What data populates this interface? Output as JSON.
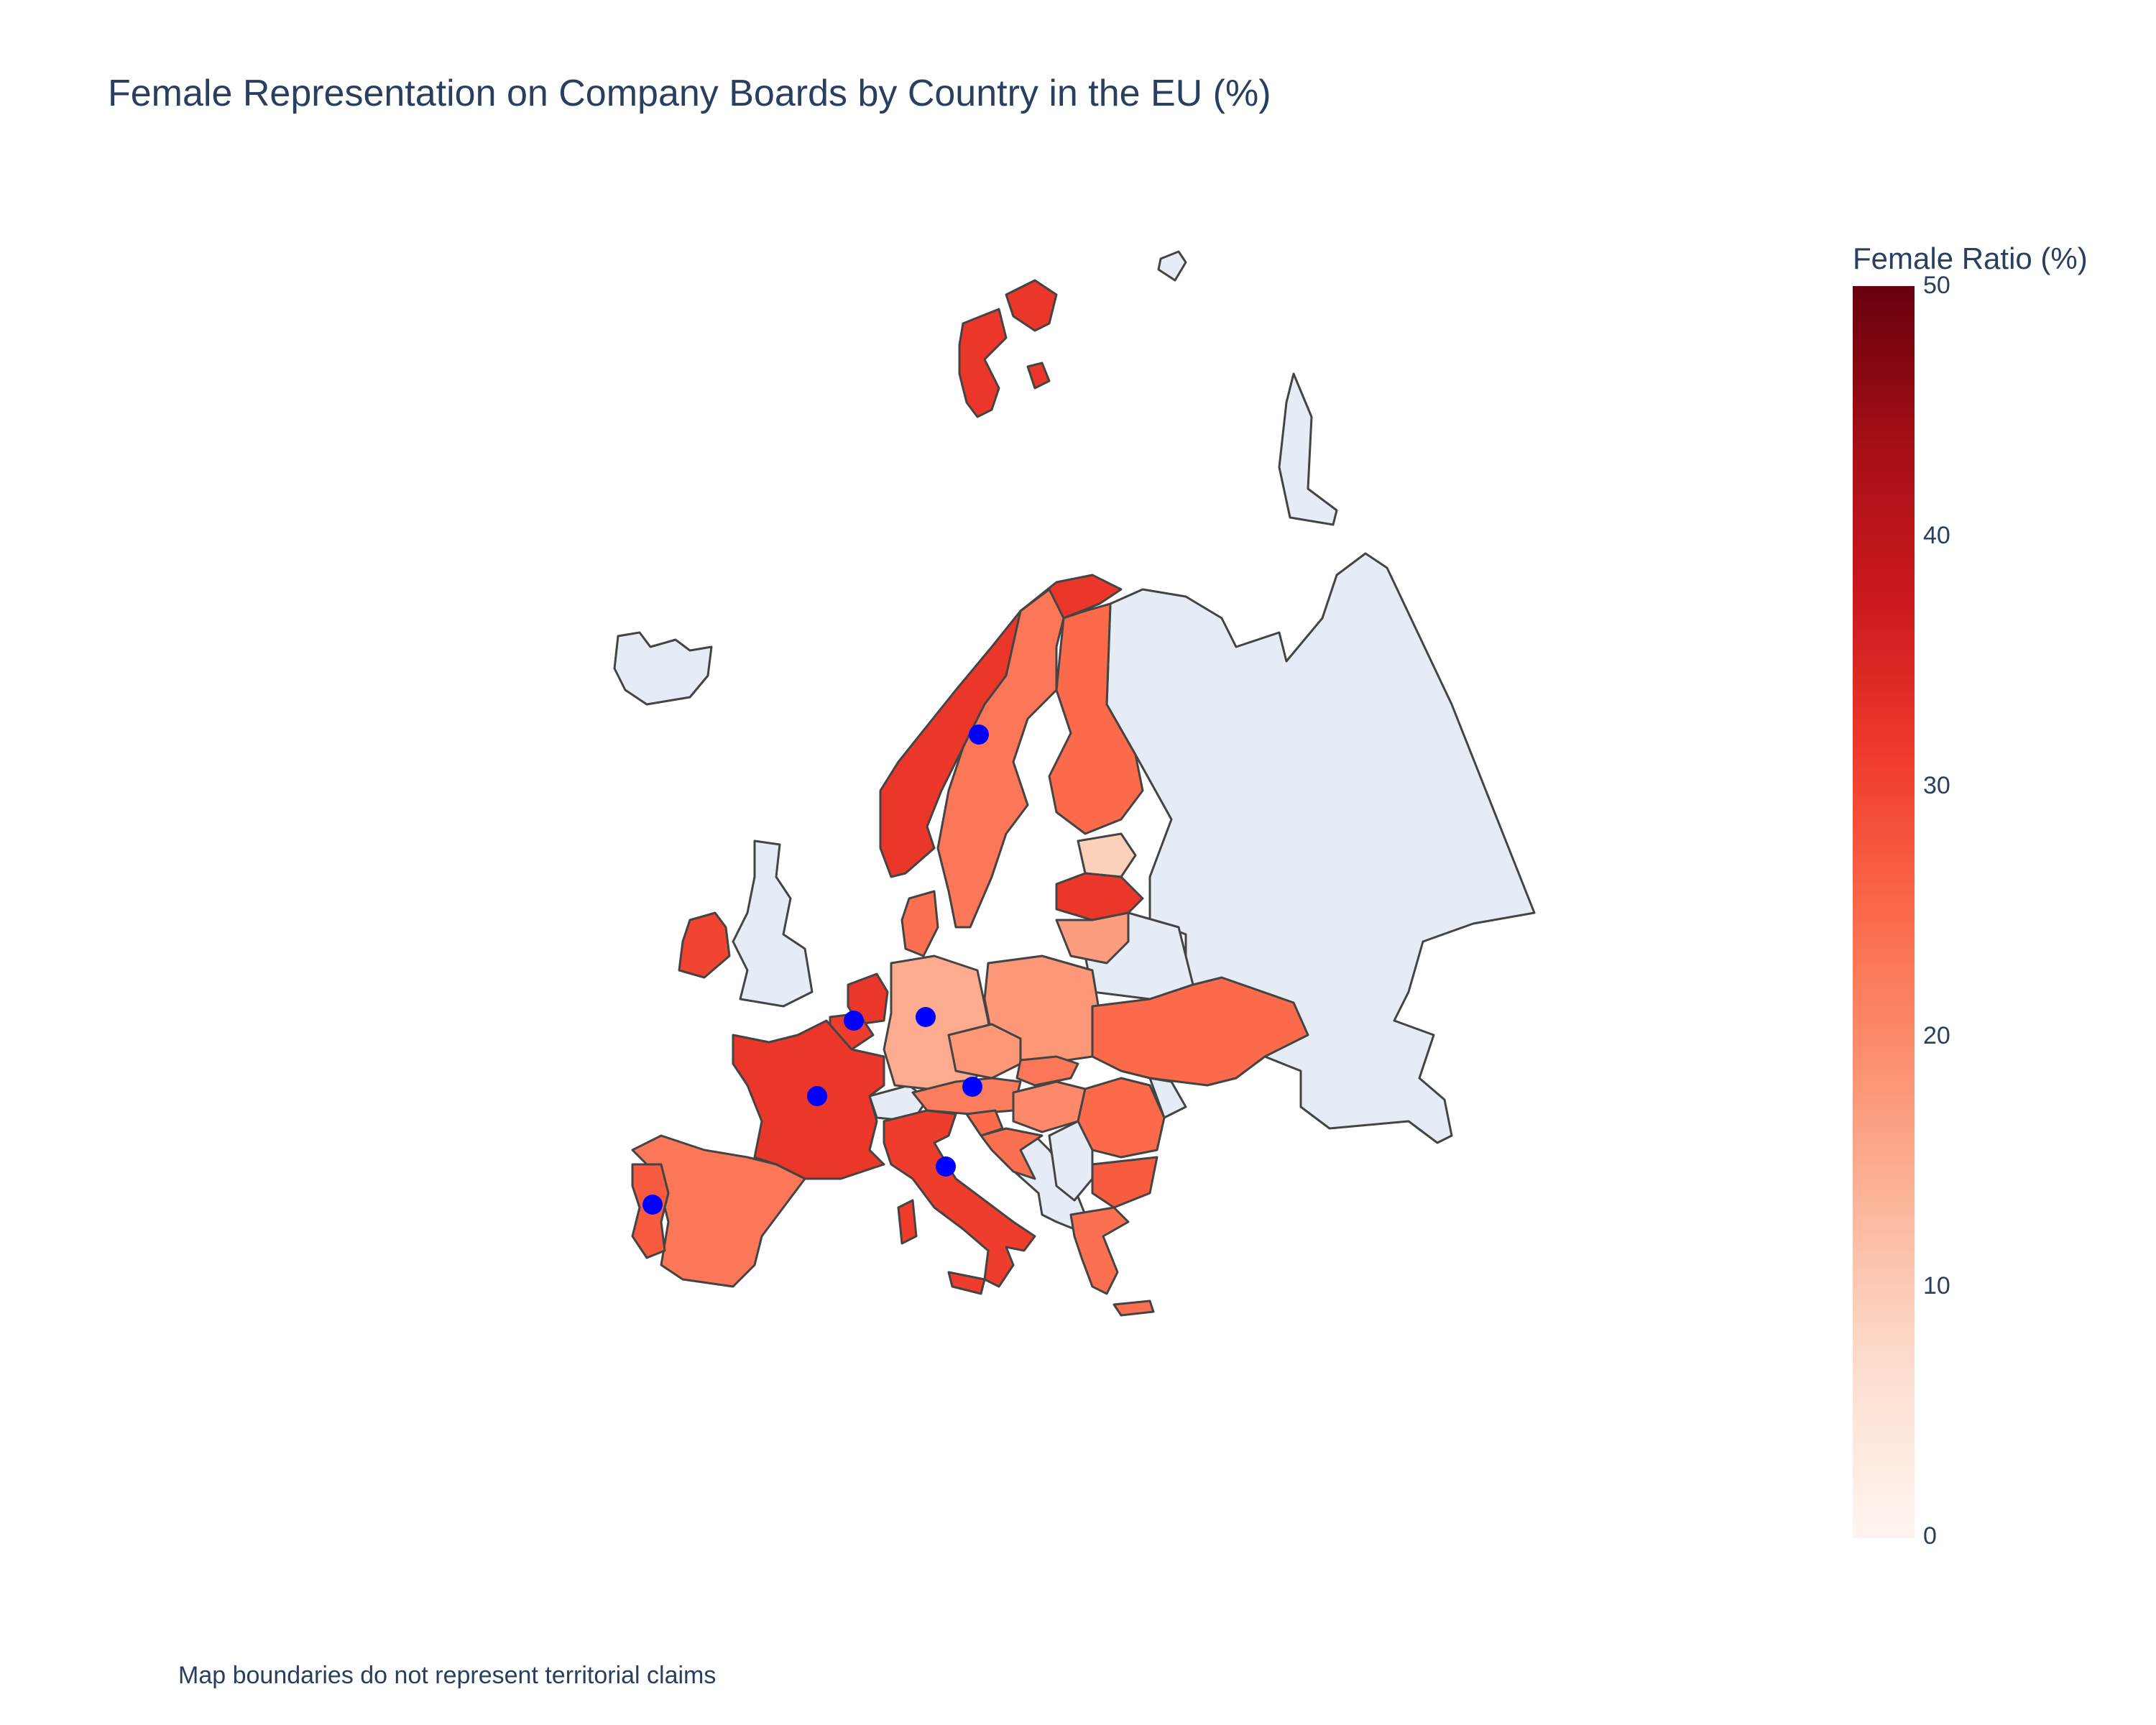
{
  "title": "Female Representation on Company Boards by Country in the EU (%)",
  "footnote": "Map boundaries do not represent territorial claims",
  "colorbar": {
    "title": "Female Ratio (%)",
    "ticks": [
      "50",
      "40",
      "30",
      "20",
      "10",
      "0"
    ],
    "range": [
      0,
      50
    ],
    "colors": [
      "#fff5f0",
      "#fee0d2",
      "#fcbba1",
      "#fc9272",
      "#fb6a4a",
      "#ef3b2c",
      "#cb181d",
      "#a50f15",
      "#67000d"
    ]
  },
  "colors": {
    "no_data": "#e5ecf6",
    "border": "#444444",
    "marker": "#0000ff"
  },
  "chart_data": {
    "type": "choropleth",
    "values": {
      "Norway": 32,
      "Sweden": 23,
      "Finland": 25,
      "Estonia": 9,
      "Latvia": 32,
      "Lithuania": 17,
      "Poland": 18,
      "Germany": 15,
      "Denmark": 24,
      "Netherlands": 32,
      "Belgium": 31,
      "France": 32,
      "Spain": 23,
      "Portugal": 27,
      "Ireland": 30,
      "Italy": 31,
      "Austria": 22,
      "Czechia": 18,
      "Slovakia": 23,
      "Hungary": 20,
      "Romania": 25,
      "Bulgaria": 27,
      "Greece": 24,
      "Slovenia": 25,
      "Croatia": 24,
      "Ukraine": 25,
      "Svalbard": 32
    },
    "markers": [
      "Sweden",
      "Germany",
      "Belgium",
      "France",
      "Austria",
      "Italy",
      "Portugal"
    ]
  }
}
